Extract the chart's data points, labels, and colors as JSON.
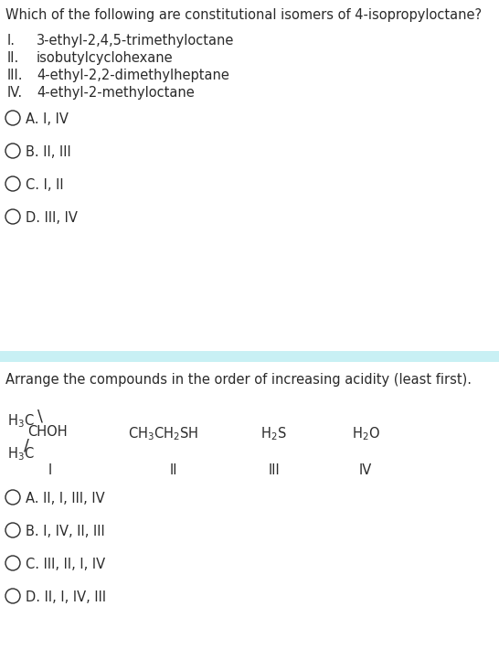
{
  "bg_color": "#ffffff",
  "separator_color": "#c8f0f4",
  "q1_title": "Which of the following are constitutional isomers of 4-isopropyloctane?",
  "q1_items": [
    [
      "I.",
      "3-ethyl-2,4,5-trimethyloctane"
    ],
    [
      "II.",
      "isobutylcyclohexane"
    ],
    [
      "III.",
      "4-ethyl-2,2-dimethylheptane"
    ],
    [
      "IV.",
      "4-ethyl-2-methyloctane"
    ]
  ],
  "q1_options": [
    "A. I, IV",
    "B. II, III",
    "C. I, II",
    "D. III, IV"
  ],
  "q2_title": "Arrange the compounds in the order of increasing acidity (least first).",
  "q2_options": [
    "A. II, I, III, IV",
    "B. I, IV, II, III",
    "C. III, II, I, IV",
    "D. II, I, IV, III"
  ],
  "text_color": "#2a2a2a",
  "title_fontsize": 10.5,
  "body_fontsize": 10.5,
  "option_fontsize": 10.5,
  "small_fontsize": 9.5
}
